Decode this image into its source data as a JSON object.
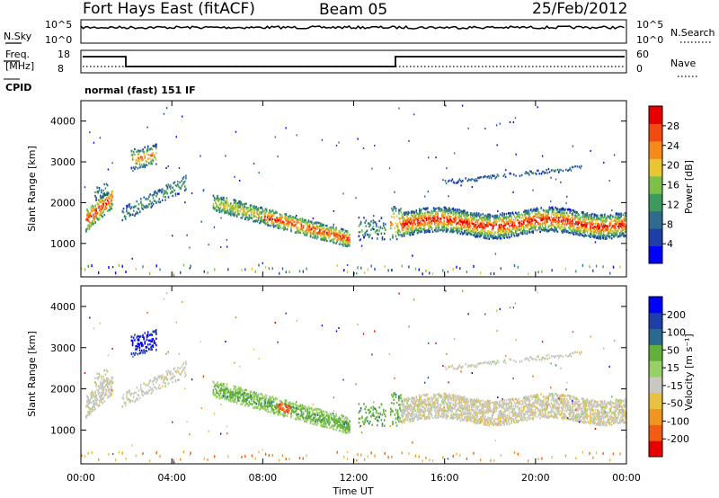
{
  "header": {
    "site": "Fort Hays East (fitACF)",
    "beam": "Beam 05",
    "date": "25/Feb/2012"
  },
  "top_panels": {
    "nsky_label": "N.Sky",
    "nsearch_label": "N.Search",
    "noise_ticks_left": [
      "10^5",
      "10^0"
    ],
    "noise_ticks_right": [
      "10^5",
      "10^0"
    ],
    "freq_label_1": "Freq.",
    "freq_label_2": "[MHz]",
    "freq_ticks": [
      "18",
      "8"
    ],
    "nave_label": "Nave",
    "nave_ticks": [
      "60",
      "0"
    ],
    "cpid_label": "CPID",
    "cpid_text": "normal (fast) 151 IF"
  },
  "chart_data": [
    {
      "type": "heatmap",
      "panel": "power",
      "ylabel": "Slant Range [km]",
      "yticks": [
        1000,
        2000,
        3000,
        4000
      ],
      "ylim": [
        180,
        4500
      ],
      "xlabel": "Time UT",
      "xticks": [
        "00:00",
        "04:00",
        "08:00",
        "12:00",
        "16:00",
        "20:00",
        "00:00"
      ],
      "xlim_hours": [
        0,
        24
      ],
      "colorbar": {
        "label": "Power [dB]",
        "ticks": [
          "4",
          "8",
          "12",
          "16",
          "20",
          "24",
          "28"
        ],
        "colors": [
          "#0000ff",
          "#1f3fa8",
          "#2e6b8e",
          "#3d9a5c",
          "#7cc04a",
          "#e8c531",
          "#f5891c",
          "#f24a10",
          "#e80000"
        ]
      },
      "features": [
        {
          "name": "early arc",
          "start_h": 0.2,
          "end_h": 1.4,
          "range_from_km": 1500,
          "range_to_km": 2400
        },
        {
          "name": "early patch",
          "start_h": 2.2,
          "end_h": 3.3,
          "range_from_km": 2700,
          "range_to_km": 3450
        },
        {
          "name": "midday band",
          "start_h": 5.8,
          "end_h": 11.8,
          "range_from_km": 1000,
          "range_to_km": 2300
        },
        {
          "name": "afternoon band",
          "start_h": 14.0,
          "end_h": 24.0,
          "range_from_km": 1100,
          "range_to_km": 2100
        }
      ]
    },
    {
      "type": "heatmap",
      "panel": "velocity",
      "ylabel": "Slant Range [km]",
      "yticks": [
        1000,
        2000,
        3000,
        4000
      ],
      "ylim": [
        180,
        4500
      ],
      "xlabel": "Time UT",
      "xticks": [
        "00:00",
        "04:00",
        "08:00",
        "12:00",
        "16:00",
        "20:00",
        "00:00"
      ],
      "xlim_hours": [
        0,
        24
      ],
      "colorbar": {
        "label": "Velocity [m s⁻¹]",
        "ticks": [
          "200",
          "100",
          "50",
          "15",
          "-15",
          "-50",
          "-100",
          "-200"
        ],
        "colors": [
          "#0000ff",
          "#1e3fa8",
          "#2a6a8e",
          "#62b03a",
          "#97d165",
          "#c8c8c0",
          "#e9c041",
          "#f0951f",
          "#f25b12",
          "#e80000"
        ]
      }
    }
  ]
}
